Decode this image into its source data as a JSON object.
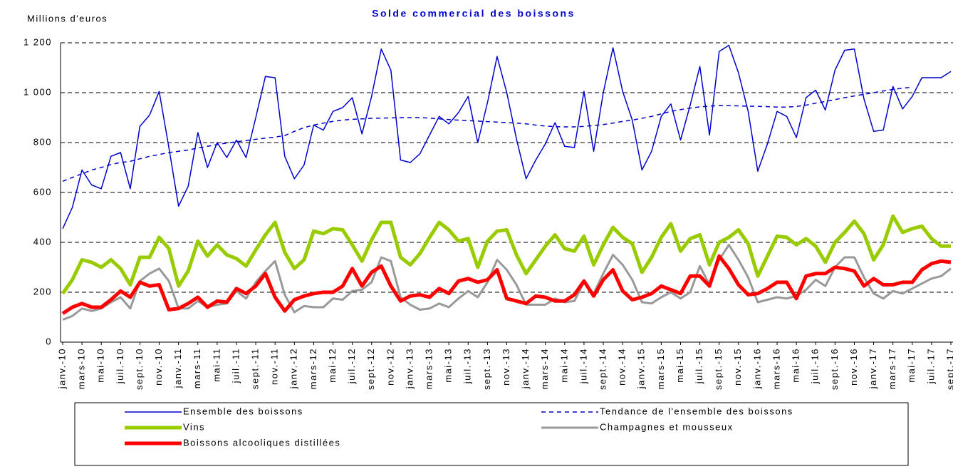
{
  "chart_data": {
    "type": "line",
    "title": "Solde commercial des boissons",
    "y_label": "Millions d'euros",
    "categories": [
      "janv.-10",
      null,
      "mars-10",
      null,
      "mai-10",
      null,
      "juil.-10",
      null,
      "sept.-10",
      null,
      "nov.-10",
      null,
      "janv.-11",
      null,
      "mars-11",
      null,
      "mai-11",
      null,
      "juil.-11",
      null,
      "sept.-11",
      null,
      "nov.-11",
      null,
      "janv.-12",
      null,
      "mars-12",
      null,
      "mai-12",
      null,
      "juil.-12",
      null,
      "sept.-12",
      null,
      "nov.-12",
      null,
      "janv.-13",
      null,
      "mars-13",
      null,
      "mai-13",
      null,
      "juil.-13",
      null,
      "sept.-13",
      null,
      "nov.-13",
      null,
      "janv.-14",
      null,
      "mars-14",
      null,
      "mai-14",
      null,
      "juil.-14",
      null,
      "sept.-14",
      null,
      "nov.-14",
      null,
      "janv.-15",
      null,
      "mars-15",
      null,
      "mai-15",
      null,
      "juil.-15",
      null,
      "sept.-15",
      null,
      "nov.-15",
      null,
      "janv.-16",
      null,
      "mars-16",
      null,
      "mai-16",
      null,
      "juil.-16",
      null,
      "sept.-16",
      null,
      "nov.-16",
      null,
      "janv.-17",
      null,
      "mars-17",
      null,
      "mai-17",
      null,
      "juil.-17",
      null,
      "sept.-17"
    ],
    "series": [
      {
        "name": "Ensemble des boissons",
        "color": "#0000cc",
        "values": [
          455,
          540,
          690,
          630,
          615,
          745,
          760,
          615,
          865,
          910,
          1005,
          780,
          545,
          625,
          840,
          700,
          800,
          740,
          810,
          740,
          900,
          1065,
          1060,
          745,
          655,
          710,
          870,
          850,
          925,
          940,
          980,
          835,
          985,
          1175,
          1090,
          730,
          720,
          755,
          830,
          905,
          875,
          920,
          985,
          800,
          960,
          1145,
          1000,
          815,
          655,
          730,
          795,
          880,
          785,
          780,
          1005,
          765,
          1000,
          1180,
          1005,
          890,
          690,
          765,
          905,
          955,
          810,
          950,
          1105,
          830,
          1165,
          1190,
          1080,
          925,
          685,
          795,
          925,
          905,
          820,
          980,
          1010,
          930,
          1090,
          1170,
          1175,
          975,
          845,
          850,
          1025,
          935,
          985,
          1060,
          1060,
          1060,
          1085
        ]
      },
      {
        "name": "Tendance de l'ensemble des boissons",
        "color": "#0000cc",
        "line_style": "dashed",
        "values": [
          645,
          660,
          675,
          690,
          700,
          712,
          720,
          725,
          735,
          745,
          752,
          760,
          765,
          770,
          778,
          785,
          792,
          798,
          803,
          808,
          813,
          818,
          822,
          828,
          845,
          860,
          870,
          878,
          885,
          890,
          893,
          895,
          897,
          898,
          899,
          900,
          900,
          900,
          898,
          895,
          892,
          890,
          888,
          886,
          884,
          882,
          880,
          878,
          875,
          870,
          866,
          864,
          863,
          863,
          865,
          868,
          872,
          878,
          885,
          890,
          897,
          905,
          915,
          925,
          932,
          938,
          943,
          946,
          948,
          948,
          947,
          946,
          945,
          944,
          942,
          942,
          945,
          950,
          958,
          965,
          972,
          980,
          987,
          993,
          1000,
          1007,
          1013,
          1018,
          1022,
          null,
          null,
          null,
          null
        ]
      },
      {
        "name": "Vins",
        "color": "#99cc00",
        "values": [
          195,
          250,
          330,
          320,
          300,
          330,
          295,
          230,
          340,
          340,
          420,
          375,
          225,
          285,
          405,
          345,
          390,
          350,
          335,
          305,
          370,
          430,
          480,
          360,
          295,
          330,
          445,
          435,
          455,
          450,
          390,
          325,
          410,
          480,
          480,
          340,
          310,
          355,
          420,
          480,
          450,
          405,
          415,
          300,
          405,
          445,
          450,
          350,
          275,
          330,
          385,
          430,
          375,
          365,
          425,
          310,
          390,
          460,
          420,
          395,
          280,
          340,
          420,
          475,
          365,
          415,
          430,
          310,
          400,
          420,
          450,
          395,
          265,
          345,
          425,
          420,
          390,
          415,
          385,
          320,
          400,
          440,
          485,
          435,
          330,
          390,
          505,
          440,
          455,
          465,
          415,
          385,
          385
        ]
      },
      {
        "name": "Champagnes et mousseux",
        "color": "#999999",
        "values": [
          90,
          105,
          135,
          125,
          135,
          160,
          180,
          135,
          245,
          275,
          295,
          245,
          135,
          135,
          165,
          140,
          150,
          155,
          205,
          175,
          240,
          285,
          325,
          190,
          120,
          145,
          140,
          140,
          175,
          170,
          205,
          210,
          240,
          340,
          325,
          180,
          150,
          130,
          135,
          155,
          140,
          175,
          205,
          180,
          240,
          330,
          290,
          230,
          150,
          150,
          150,
          175,
          160,
          165,
          240,
          195,
          275,
          350,
          310,
          250,
          160,
          155,
          180,
          200,
          175,
          200,
          305,
          230,
          330,
          390,
          330,
          260,
          160,
          170,
          180,
          175,
          185,
          210,
          250,
          225,
          300,
          340,
          340,
          260,
          195,
          175,
          205,
          195,
          215,
          235,
          255,
          265,
          295
        ]
      },
      {
        "name": "Boissons alcooliques distillées",
        "color": "#ff0000",
        "values": [
          115,
          140,
          155,
          140,
          140,
          170,
          205,
          180,
          240,
          225,
          230,
          130,
          135,
          155,
          180,
          140,
          165,
          160,
          215,
          195,
          225,
          275,
          180,
          125,
          170,
          185,
          195,
          200,
          200,
          225,
          295,
          225,
          280,
          305,
          225,
          165,
          185,
          190,
          180,
          215,
          195,
          245,
          255,
          240,
          250,
          290,
          175,
          165,
          155,
          185,
          180,
          165,
          165,
          190,
          245,
          185,
          250,
          290,
          205,
          170,
          180,
          195,
          225,
          210,
          195,
          265,
          265,
          225,
          345,
          295,
          230,
          190,
          195,
          215,
          240,
          240,
          175,
          265,
          275,
          275,
          300,
          295,
          285,
          225,
          255,
          230,
          230,
          240,
          240,
          290,
          315,
          325,
          320
        ]
      }
    ],
    "ylim": [
      0,
      1200
    ],
    "yticks": [
      0,
      200,
      400,
      600,
      800,
      {
        "value": 1000,
        "label": "1 000"
      },
      {
        "value": 1200,
        "label": "1 200"
      }
    ],
    "grid": true
  }
}
